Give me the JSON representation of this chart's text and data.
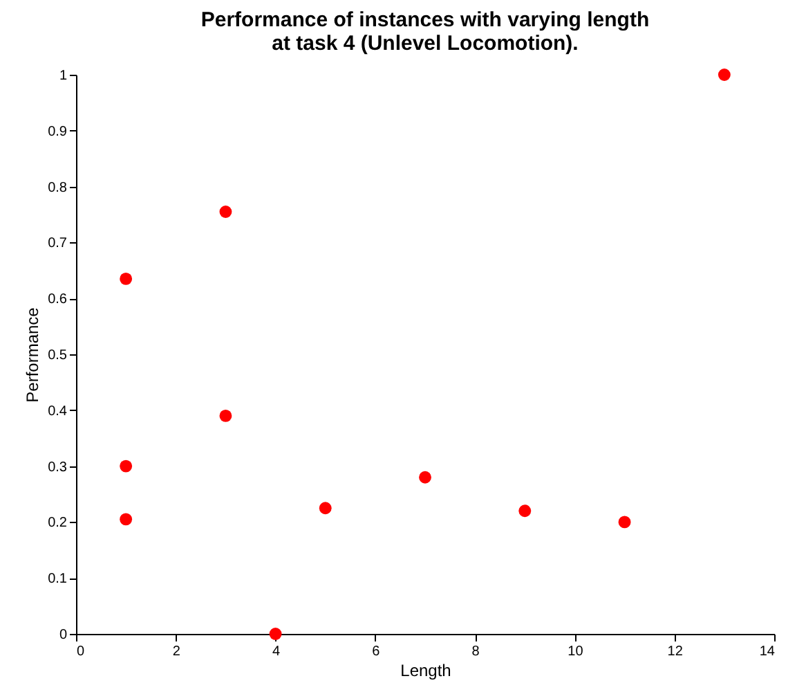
{
  "chart_data": {
    "type": "scatter",
    "title": "Performance of instances with varying length\nat task 4 (Unlevel Locomotion).",
    "xlabel": "Length",
    "ylabel": "Performance",
    "x": [
      1,
      1,
      1,
      3,
      3,
      4,
      5,
      7,
      9,
      11,
      13
    ],
    "series": [
      {
        "color": "#ff0000",
        "values": [
          0.635,
          0.3,
          0.205,
          0.755,
          0.39,
          0,
          0.225,
          0.28,
          0.22,
          0.2,
          1
        ]
      }
    ],
    "xlim": [
      0,
      14
    ],
    "xticks": [
      0,
      2,
      4,
      6,
      8,
      10,
      12,
      14
    ],
    "ylim": [
      0,
      1
    ],
    "yticks": [
      0,
      0.1,
      0.2,
      0.3,
      0.4,
      0.5,
      0.6,
      0.7,
      0.8,
      0.9,
      1
    ],
    "marker": "circle",
    "grid": false
  }
}
